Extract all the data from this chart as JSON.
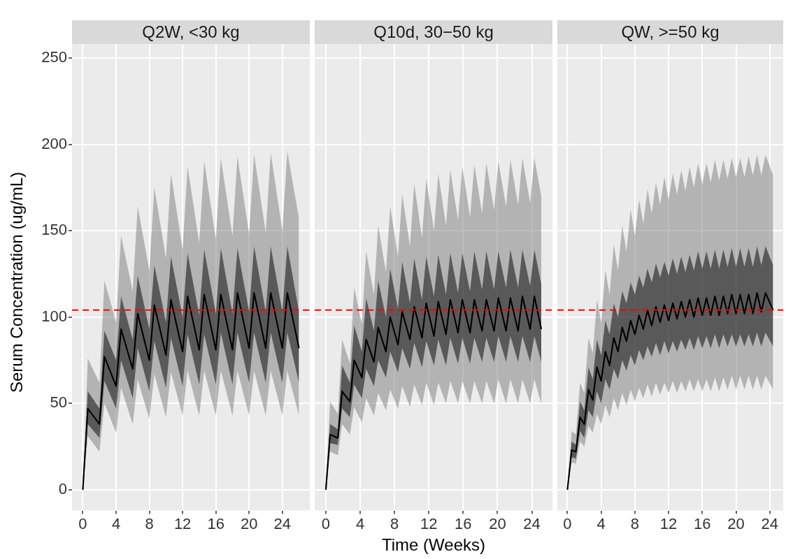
{
  "chart_data": [
    {
      "type": "line",
      "title": "Q2W, <30 kg",
      "ylabel": "Serum Concentration (ug/mL)",
      "xlim": [
        -1.3,
        27.3
      ],
      "ylim": [
        -12,
        258
      ],
      "xticks": [
        0,
        4,
        8,
        12,
        16,
        20,
        24
      ],
      "yticks": [
        0,
        50,
        100,
        150,
        200,
        250
      ],
      "grid": true,
      "legend": false,
      "marker": "none",
      "x": [
        0,
        0.6,
        2,
        2.6,
        4,
        4.6,
        6,
        6.6,
        8,
        8.6,
        10,
        10.6,
        12,
        12.6,
        14,
        14.6,
        16,
        16.6,
        18,
        18.6,
        20,
        20.6,
        22,
        22.6,
        24,
        24.6,
        26
      ],
      "series": [
        {
          "color": "#000000",
          "values": [
            0,
            47,
            38,
            77,
            60,
            93,
            70,
            102,
            75,
            107,
            78,
            110,
            80,
            112,
            81,
            113,
            81,
            113,
            81,
            114,
            82,
            114,
            82,
            114,
            82,
            114,
            82
          ],
          "lower": [
            0,
            38,
            30,
            63,
            47,
            75,
            53,
            82,
            57,
            86,
            59,
            88,
            60,
            90,
            61,
            90,
            61,
            91,
            61,
            91,
            62,
            91,
            62,
            91,
            62,
            91,
            62
          ],
          "upper": [
            0,
            57,
            47,
            92,
            75,
            112,
            87,
            124,
            93,
            130,
            97,
            135,
            100,
            137,
            101,
            139,
            102,
            140,
            102,
            140,
            103,
            141,
            103,
            141,
            103,
            141,
            103
          ]
        },
        {
          "color": "#7b7b7b",
          "values": [
            0,
            47,
            38,
            77,
            60,
            93,
            70,
            102,
            75,
            107,
            78,
            110,
            80,
            112,
            81,
            113,
            81,
            113,
            81,
            114,
            82,
            114,
            82,
            114,
            82,
            114,
            82
          ],
          "lower": [
            0,
            31,
            22,
            50,
            33,
            59,
            38,
            64,
            41,
            67,
            42,
            68,
            43,
            69,
            43,
            69,
            43,
            69,
            43,
            69,
            43,
            69,
            43,
            69,
            43,
            69,
            43
          ],
          "upper": [
            0,
            76,
            62,
            121,
            97,
            147,
            115,
            164,
            127,
            175,
            134,
            183,
            139,
            187,
            143,
            190,
            145,
            192,
            147,
            193,
            148,
            194,
            149,
            195,
            150,
            196,
            157
          ]
        }
      ],
      "ref_lines": [
        {
          "axis": "y",
          "value": 104,
          "color": "#ff0000",
          "line_style": "dashed"
        }
      ]
    },
    {
      "type": "line",
      "title": "Q10d, 30−50 kg",
      "xlabel": "Time (Weeks)",
      "xlim": [
        -1.3,
        26.4
      ],
      "ylim": [
        -12,
        258
      ],
      "xticks": [
        0,
        4,
        8,
        12,
        16,
        20,
        24
      ],
      "yticks": [
        0,
        50,
        100,
        150,
        200,
        250
      ],
      "tick_labels": "x",
      "grid": true,
      "legend": false,
      "marker": "none",
      "x": [
        0,
        0.5,
        1.4,
        1.9,
        2.8,
        3.3,
        4.2,
        4.7,
        5.6,
        6.1,
        7,
        7.5,
        8.4,
        8.9,
        9.8,
        10.3,
        11.2,
        11.7,
        12.6,
        13.1,
        14,
        14.5,
        15.4,
        15.9,
        16.8,
        17.3,
        18.2,
        18.7,
        19.6,
        20.1,
        21,
        21.5,
        22.4,
        22.9,
        23.8,
        24.3,
        25.1
      ],
      "series": [
        {
          "color": "#000000",
          "values": [
            0,
            32,
            30,
            57,
            51,
            75,
            65,
            87,
            74,
            94,
            80,
            100,
            84,
            103,
            87,
            106,
            88,
            108,
            89,
            109,
            90,
            110,
            91,
            110,
            91,
            110,
            92,
            110,
            92,
            111,
            92,
            111,
            92,
            112,
            93,
            112,
            93
          ],
          "lower": [
            0,
            27,
            26,
            47,
            42,
            61,
            53,
            70,
            60,
            75,
            65,
            80,
            68,
            82,
            70,
            85,
            71,
            86,
            72,
            87,
            72,
            88,
            73,
            88,
            73,
            88,
            74,
            88,
            74,
            89,
            74,
            89,
            74,
            89,
            74,
            89,
            74
          ],
          "upper": [
            0,
            38,
            35,
            72,
            62,
            95,
            80,
            111,
            92,
            121,
            100,
            128,
            105,
            132,
            108,
            134,
            110,
            135,
            112,
            136,
            113,
            137,
            114,
            137,
            115,
            138,
            116,
            138,
            116,
            138,
            117,
            139,
            117,
            139,
            118,
            139,
            119
          ]
        },
        {
          "color": "#7b7b7b",
          "values": [
            0,
            32,
            30,
            57,
            51,
            75,
            65,
            87,
            74,
            94,
            80,
            100,
            84,
            103,
            87,
            106,
            88,
            108,
            89,
            109,
            90,
            110,
            91,
            110,
            91,
            110,
            92,
            110,
            92,
            111,
            92,
            111,
            92,
            112,
            93,
            112,
            93
          ],
          "lower": [
            0,
            22,
            20,
            38,
            32,
            48,
            39,
            53,
            43,
            56,
            46,
            58,
            47,
            60,
            48,
            61,
            49,
            62,
            49,
            62,
            50,
            63,
            50,
            63,
            50,
            63,
            50,
            63,
            50,
            64,
            50,
            64,
            50,
            64,
            50,
            64,
            50
          ],
          "upper": [
            0,
            51,
            44,
            87,
            73,
            117,
            96,
            138,
            113,
            153,
            126,
            164,
            135,
            171,
            141,
            177,
            146,
            180,
            150,
            183,
            153,
            185,
            156,
            187,
            158,
            188,
            160,
            189,
            162,
            190,
            164,
            191,
            165,
            192,
            166,
            192,
            170
          ]
        }
      ],
      "ref_lines": [
        {
          "axis": "y",
          "value": 104,
          "color": "#ff0000",
          "line_style": "dashed"
        }
      ]
    },
    {
      "type": "line",
      "title": "QW, >=50 kg",
      "xlim": [
        -1.2,
        25.6
      ],
      "ylim": [
        -12,
        258
      ],
      "xticks": [
        0,
        4,
        8,
        12,
        16,
        20,
        24
      ],
      "yticks": [
        0,
        50,
        100,
        150,
        200,
        250
      ],
      "tick_labels": "x",
      "grid": true,
      "legend": false,
      "marker": "none",
      "x": [
        0,
        0.5,
        1,
        1.5,
        2,
        2.5,
        3,
        3.5,
        4,
        4.5,
        5,
        5.5,
        6,
        6.5,
        7,
        7.5,
        8,
        8.5,
        9,
        9.5,
        10,
        10.5,
        11,
        11.5,
        12,
        12.5,
        13,
        13.5,
        14,
        14.5,
        15,
        15.5,
        16,
        16.5,
        17,
        17.5,
        18,
        18.5,
        19,
        19.5,
        20,
        20.5,
        21,
        21.5,
        22,
        22.5,
        23,
        23.5,
        24.4
      ],
      "series": [
        {
          "color": "#000000",
          "values": [
            0,
            23,
            22,
            42,
            38,
            58,
            52,
            71,
            63,
            80,
            72,
            88,
            80,
            94,
            86,
            98,
            90,
            101,
            93,
            104,
            95,
            106,
            97,
            107,
            98,
            108,
            99,
            109,
            100,
            110,
            100,
            111,
            101,
            111,
            101,
            112,
            101,
            112,
            102,
            113,
            102,
            113,
            102,
            113,
            102,
            114,
            103,
            114,
            104
          ],
          "lower": [
            0,
            19,
            18,
            34,
            30,
            46,
            42,
            57,
            50,
            64,
            58,
            70,
            64,
            75,
            69,
            78,
            72,
            81,
            75,
            83,
            77,
            85,
            78,
            86,
            79,
            86,
            80,
            87,
            81,
            88,
            81,
            89,
            82,
            89,
            82,
            90,
            82,
            90,
            83,
            90,
            83,
            90,
            83,
            90,
            83,
            91,
            83,
            91,
            83
          ],
          "upper": [
            0,
            28,
            26,
            51,
            46,
            71,
            64,
            87,
            78,
            98,
            90,
            108,
            100,
            115,
            108,
            120,
            113,
            124,
            117,
            128,
            120,
            131,
            123,
            132,
            124,
            134,
            125,
            135,
            126,
            136,
            127,
            138,
            128,
            138,
            128,
            139,
            128,
            139,
            129,
            140,
            129,
            140,
            129,
            140,
            129,
            141,
            130,
            141,
            130
          ]
        },
        {
          "color": "#7b7b7b",
          "values": [
            0,
            23,
            22,
            42,
            38,
            58,
            52,
            71,
            63,
            80,
            72,
            88,
            80,
            94,
            86,
            98,
            90,
            101,
            93,
            104,
            95,
            106,
            97,
            107,
            98,
            108,
            99,
            109,
            100,
            110,
            100,
            111,
            101,
            111,
            101,
            112,
            101,
            112,
            102,
            113,
            102,
            113,
            102,
            113,
            102,
            114,
            103,
            114,
            104
          ],
          "lower": [
            0,
            16,
            15,
            28,
            25,
            37,
            33,
            44,
            38,
            49,
            42,
            53,
            46,
            56,
            49,
            58,
            51,
            59,
            53,
            61,
            54,
            62,
            55,
            62,
            56,
            63,
            56,
            63,
            57,
            64,
            57,
            64,
            57,
            64,
            57,
            65,
            57,
            65,
            58,
            66,
            58,
            66,
            58,
            66,
            58,
            66,
            58,
            66,
            58
          ],
          "upper": [
            0,
            34,
            32,
            62,
            56,
            88,
            79,
            110,
            97,
            127,
            113,
            142,
            127,
            153,
            138,
            162,
            147,
            168,
            154,
            174,
            160,
            178,
            165,
            181,
            168,
            183,
            171,
            185,
            173,
            187,
            175,
            189,
            177,
            189,
            178,
            191,
            179,
            191,
            180,
            192,
            181,
            192,
            181,
            193,
            182,
            194,
            182,
            194,
            182
          ]
        }
      ],
      "ref_lines": [
        {
          "axis": "y",
          "value": 104,
          "color": "#ff0000",
          "line_style": "dashed"
        }
      ]
    }
  ]
}
